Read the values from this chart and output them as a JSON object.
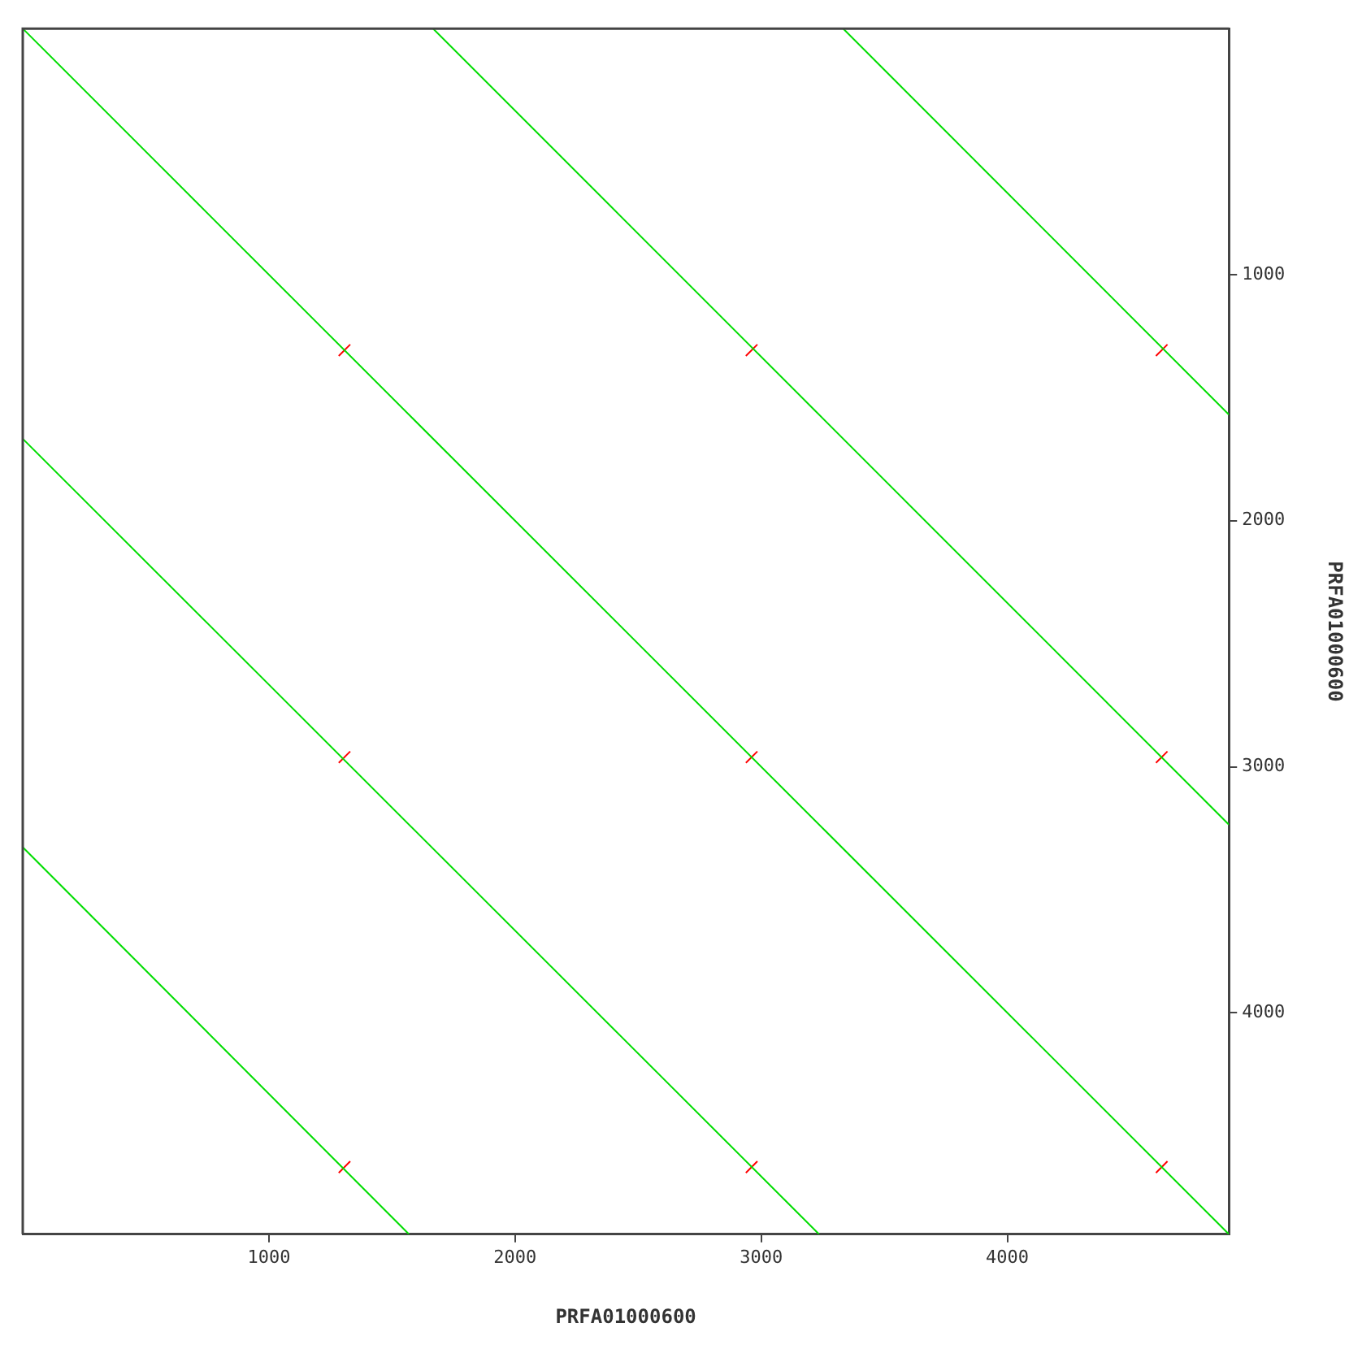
{
  "chart_data": {
    "type": "line",
    "xlabel": "PRFA01000600",
    "ylabel": "PRFA01000600",
    "xlim": [
      0,
      4900
    ],
    "ylim": [
      4900,
      0
    ],
    "xticks": [
      1000,
      2000,
      3000,
      4000
    ],
    "yticks": [
      1000,
      2000,
      3000,
      4000
    ],
    "grid": false,
    "legend": false,
    "line_style": "solid",
    "series": [
      {
        "color": "#00dd00",
        "x": [
          0,
          4900
        ],
        "values": [
          0,
          4900
        ]
      },
      {
        "color": "#00dd00",
        "x": [
          1667,
          4900
        ],
        "values": [
          0,
          3235
        ]
      },
      {
        "color": "#00dd00",
        "x": [
          3333,
          4900
        ],
        "values": [
          0,
          1569
        ]
      },
      {
        "color": "#00dd00",
        "x": [
          0,
          3235
        ],
        "values": [
          1667,
          4900
        ]
      },
      {
        "color": "#00dd00",
        "x": [
          0,
          1569
        ],
        "values": [
          3327,
          4900
        ]
      },
      {
        "type": "scatter",
        "color": "#ff0000",
        "marker": "cross",
        "x": [
          1307,
          2961,
          4627,
          1307,
          2961,
          4627,
          1307,
          2961,
          4627
        ],
        "values": [
          1307,
          1307,
          1307,
          2961,
          2961,
          2961,
          4627,
          4627,
          4627
        ]
      }
    ]
  }
}
